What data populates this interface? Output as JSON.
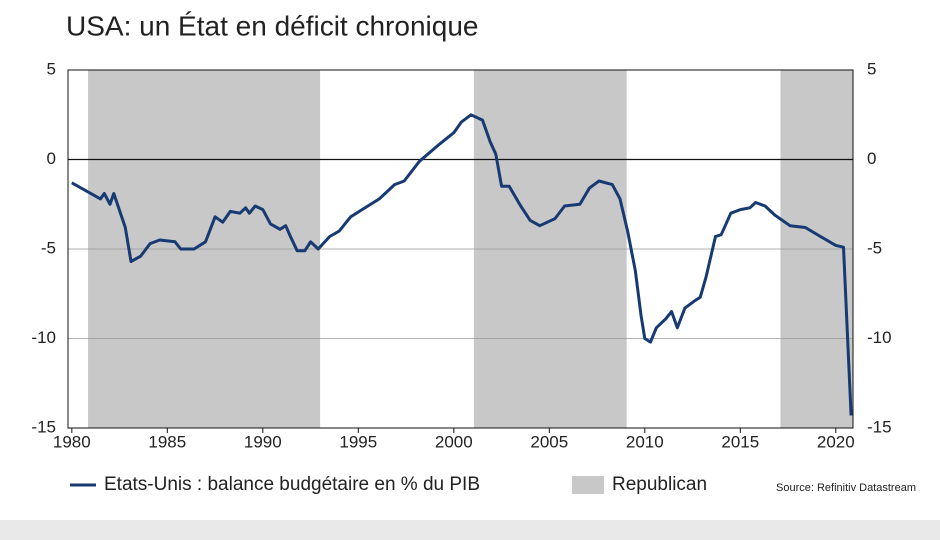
{
  "chart_data": {
    "type": "line",
    "title": "USA: un État en déficit chronique",
    "x": [
      1980,
      1981.5,
      1981.7,
      1982,
      1982.2,
      1982.8,
      1983.1,
      1983.6,
      1984.1,
      1984.6,
      1985.4,
      1985.7,
      1986.4,
      1987,
      1987.5,
      1987.9,
      1988.3,
      1988.8,
      1989.1,
      1989.3,
      1989.6,
      1990,
      1990.4,
      1990.9,
      1991.2,
      1991.4,
      1991.8,
      1992.2,
      1992.5,
      1992.9,
      1993.5,
      1994,
      1994.6,
      1995.2,
      1996.1,
      1996.9,
      1997.4,
      1998.2,
      1999.3,
      2000,
      2000.4,
      2000.9,
      2001.5,
      2001.9,
      2002.2,
      2002.5,
      2002.9,
      2003.5,
      2004,
      2004.5,
      2005.3,
      2005.8,
      2006.6,
      2007.1,
      2007.6,
      2008.3,
      2008.7,
      2009.1,
      2009.5,
      2009.8,
      2010,
      2010.3,
      2010.6,
      2011.1,
      2011.4,
      2011.7,
      2012.1,
      2012.6,
      2012.9,
      2013.2,
      2013.7,
      2014,
      2014.5,
      2015,
      2015.5,
      2015.8,
      2016.3,
      2016.8,
      2017.6,
      2018.4,
      2019.2,
      2020,
      2020.4,
      2020.8
    ],
    "series": [
      {
        "name": "Etats-Unis : balance budgétaire en % du PIB",
        "color": "#173a72",
        "values": [
          -1.3,
          -2.2,
          -1.9,
          -2.5,
          -1.9,
          -3.8,
          -5.7,
          -5.4,
          -4.7,
          -4.5,
          -4.6,
          -5.0,
          -5.0,
          -4.6,
          -3.2,
          -3.5,
          -2.9,
          -3.0,
          -2.7,
          -3.0,
          -2.6,
          -2.8,
          -3.6,
          -3.9,
          -3.7,
          -4.2,
          -5.1,
          -5.1,
          -4.6,
          -5.0,
          -4.3,
          -4.0,
          -3.2,
          -2.8,
          -2.2,
          -1.4,
          -1.2,
          -0.1,
          0.9,
          1.5,
          2.1,
          2.5,
          2.2,
          1.0,
          0.3,
          -1.5,
          -1.5,
          -2.6,
          -3.4,
          -3.7,
          -3.3,
          -2.6,
          -2.5,
          -1.6,
          -1.2,
          -1.4,
          -2.2,
          -4.0,
          -6.2,
          -8.7,
          -10.0,
          -10.2,
          -9.4,
          -8.9,
          -8.5,
          -9.4,
          -8.3,
          -7.9,
          -7.7,
          -6.6,
          -4.3,
          -4.2,
          -3.0,
          -2.8,
          -2.7,
          -2.4,
          -2.6,
          -3.1,
          -3.7,
          -3.8,
          -4.3,
          -4.8,
          -4.9,
          -14.3
        ]
      }
    ],
    "shade_name": "Republican",
    "shade_color": "#c8c8c9",
    "shaded_periods": [
      [
        1980.85,
        1993.0
      ],
      [
        2001.05,
        2009.05
      ],
      [
        2017.1,
        2020.9
      ]
    ],
    "xlim": [
      1979.8,
      2020.9
    ],
    "xticks": [
      1980,
      1985,
      1990,
      1995,
      2000,
      2005,
      2010,
      2015,
      2020
    ],
    "ylim": [
      -15,
      5
    ],
    "yticks": [
      5,
      0,
      -5,
      -10,
      -15
    ],
    "mirror_y_axis": true,
    "grid": true,
    "source": "Source: Refinitiv Datastream"
  }
}
